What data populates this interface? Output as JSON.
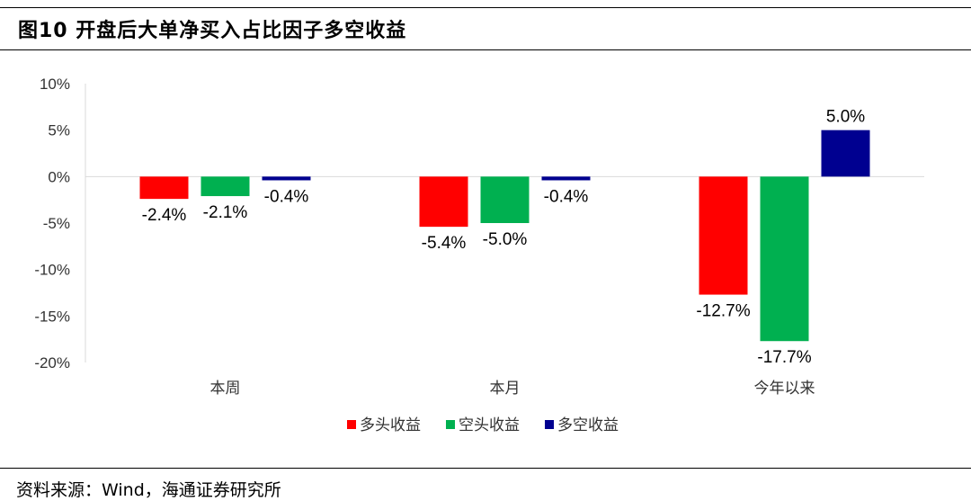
{
  "header": {
    "title": "图10 开盘后大单净买入占比因子多空收益"
  },
  "footer": {
    "source": "资料来源：Wind，海通证券研究所"
  },
  "chart_data": {
    "type": "bar",
    "categories": [
      "本周",
      "本月",
      "今年以来"
    ],
    "series": [
      {
        "name": "多头收益",
        "color": "#FF0000",
        "values": [
          -2.4,
          -5.4,
          -12.7
        ],
        "labels": [
          "-2.4%",
          "-5.4%",
          "-12.7%"
        ]
      },
      {
        "name": "空头收益",
        "color": "#00B050",
        "values": [
          -2.1,
          -5.0,
          -17.7
        ],
        "labels": [
          "-2.1%",
          "-5.0%",
          "-17.7%"
        ]
      },
      {
        "name": "多空收益",
        "color": "#000090",
        "values": [
          -0.4,
          -0.4,
          5.0
        ],
        "labels": [
          "-0.4%",
          "-0.4%",
          "5.0%"
        ]
      }
    ],
    "ylim": [
      -20,
      10
    ],
    "yticks": [
      10,
      5,
      0,
      -5,
      -10,
      -15,
      -20
    ],
    "ytick_labels": [
      "10%",
      "5%",
      "0%",
      "-5%",
      "-10%",
      "-15%",
      "-20%"
    ],
    "legend_position": "bottom",
    "grid": false
  }
}
